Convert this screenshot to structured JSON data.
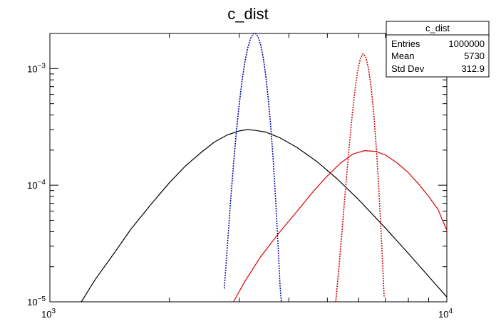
{
  "chart_data": {
    "type": "line",
    "title": "c_dist",
    "xlabel": "",
    "ylabel": "",
    "x_scale": "log",
    "y_scale": "log",
    "xlim": [
      1000,
      10000
    ],
    "ylim": [
      1e-05,
      0.002
    ],
    "grid": false,
    "x_tick_labels": [
      {
        "value": 1000,
        "base": "10",
        "exp": "3"
      },
      {
        "value": 10000,
        "base": "10",
        "exp": "4"
      }
    ],
    "y_tick_labels": [
      {
        "value": 1e-05,
        "base": "10",
        "exp": "−5"
      },
      {
        "value": 0.0001,
        "base": "10",
        "exp": "−4"
      },
      {
        "value": 0.001,
        "base": "10",
        "exp": "−3"
      }
    ],
    "series": [
      {
        "color": "#000000",
        "style": "solid",
        "points": [
          [
            1200,
            1e-05
          ],
          [
            1300,
            1.55e-05
          ],
          [
            1450,
            2.6e-05
          ],
          [
            1600,
            4.2e-05
          ],
          [
            1800,
            6.9e-05
          ],
          [
            2000,
            0.000105
          ],
          [
            2200,
            0.000147
          ],
          [
            2400,
            0.00019
          ],
          [
            2600,
            0.000235
          ],
          [
            2800,
            0.00027
          ],
          [
            3000,
            0.000292
          ],
          [
            3150,
            0.0003
          ],
          [
            3300,
            0.000295
          ],
          [
            3500,
            0.000285
          ],
          [
            3800,
            0.000255
          ],
          [
            4200,
            0.00021
          ],
          [
            4700,
            0.00016
          ],
          [
            5300,
            0.000113
          ],
          [
            6000,
            7.5e-05
          ],
          [
            7000,
            4.3e-05
          ],
          [
            8000,
            2.6e-05
          ],
          [
            9000,
            1.65e-05
          ],
          [
            10000,
            1.1e-05
          ]
        ]
      },
      {
        "color": "#0000aa",
        "style": "dotted",
        "points": [
          [
            2750,
            1.3e-05
          ],
          [
            2800,
            3e-05
          ],
          [
            2850,
            7e-05
          ],
          [
            2900,
            0.00015
          ],
          [
            2950,
            0.00029
          ],
          [
            3000,
            0.0005
          ],
          [
            3050,
            0.0008
          ],
          [
            3100,
            0.00115
          ],
          [
            3150,
            0.0015
          ],
          [
            3200,
            0.0018
          ],
          [
            3250,
            0.00198
          ],
          [
            3300,
            0.002
          ],
          [
            3350,
            0.00185
          ],
          [
            3400,
            0.00158
          ],
          [
            3450,
            0.00122
          ],
          [
            3500,
            0.00086
          ],
          [
            3550,
            0.00055
          ],
          [
            3600,
            0.00032
          ],
          [
            3650,
            0.00017
          ],
          [
            3700,
            8e-05
          ],
          [
            3750,
            3.5e-05
          ],
          [
            3800,
            1.4e-05
          ],
          [
            3830,
            1e-05
          ]
        ]
      },
      {
        "color": "#dd0000",
        "style": "solid",
        "points": [
          [
            2900,
            1e-05
          ],
          [
            3100,
            1.5e-05
          ],
          [
            3400,
            2.45e-05
          ],
          [
            3800,
            4e-05
          ],
          [
            4200,
            6e-05
          ],
          [
            4600,
            8.8e-05
          ],
          [
            5000,
            0.00012
          ],
          [
            5400,
            0.000155
          ],
          [
            5800,
            0.000185
          ],
          [
            6200,
            0.000198
          ],
          [
            6600,
            0.000195
          ],
          [
            7000,
            0.000182
          ],
          [
            7500,
            0.000155
          ],
          [
            8000,
            0.000128
          ],
          [
            8500,
            0.000102
          ],
          [
            9000,
            8e-05
          ],
          [
            9500,
            6.2e-05
          ],
          [
            10000,
            4.1e-05
          ]
        ]
      },
      {
        "color": "#cc0000",
        "style": "dotted",
        "points": [
          [
            5250,
            1e-05
          ],
          [
            5350,
            2e-05
          ],
          [
            5450,
            4.2e-05
          ],
          [
            5550,
            9e-05
          ],
          [
            5650,
            0.00018
          ],
          [
            5750,
            0.00034
          ],
          [
            5850,
            0.0006
          ],
          [
            5950,
            0.00092
          ],
          [
            6050,
            0.0012
          ],
          [
            6150,
            0.00134
          ],
          [
            6250,
            0.00125
          ],
          [
            6350,
            0.001
          ],
          [
            6450,
            0.00068
          ],
          [
            6550,
            0.0004
          ],
          [
            6650,
            0.0002
          ],
          [
            6750,
            8.5e-05
          ],
          [
            6850,
            3.2e-05
          ],
          [
            6950,
            1.1e-05
          ]
        ]
      }
    ]
  },
  "stats_box": {
    "title": "c_dist",
    "rows": [
      {
        "label": "Entries",
        "value": "1000000"
      },
      {
        "label": "Mean",
        "value": "5730"
      },
      {
        "label": "Std Dev",
        "value": "312.9"
      }
    ]
  }
}
